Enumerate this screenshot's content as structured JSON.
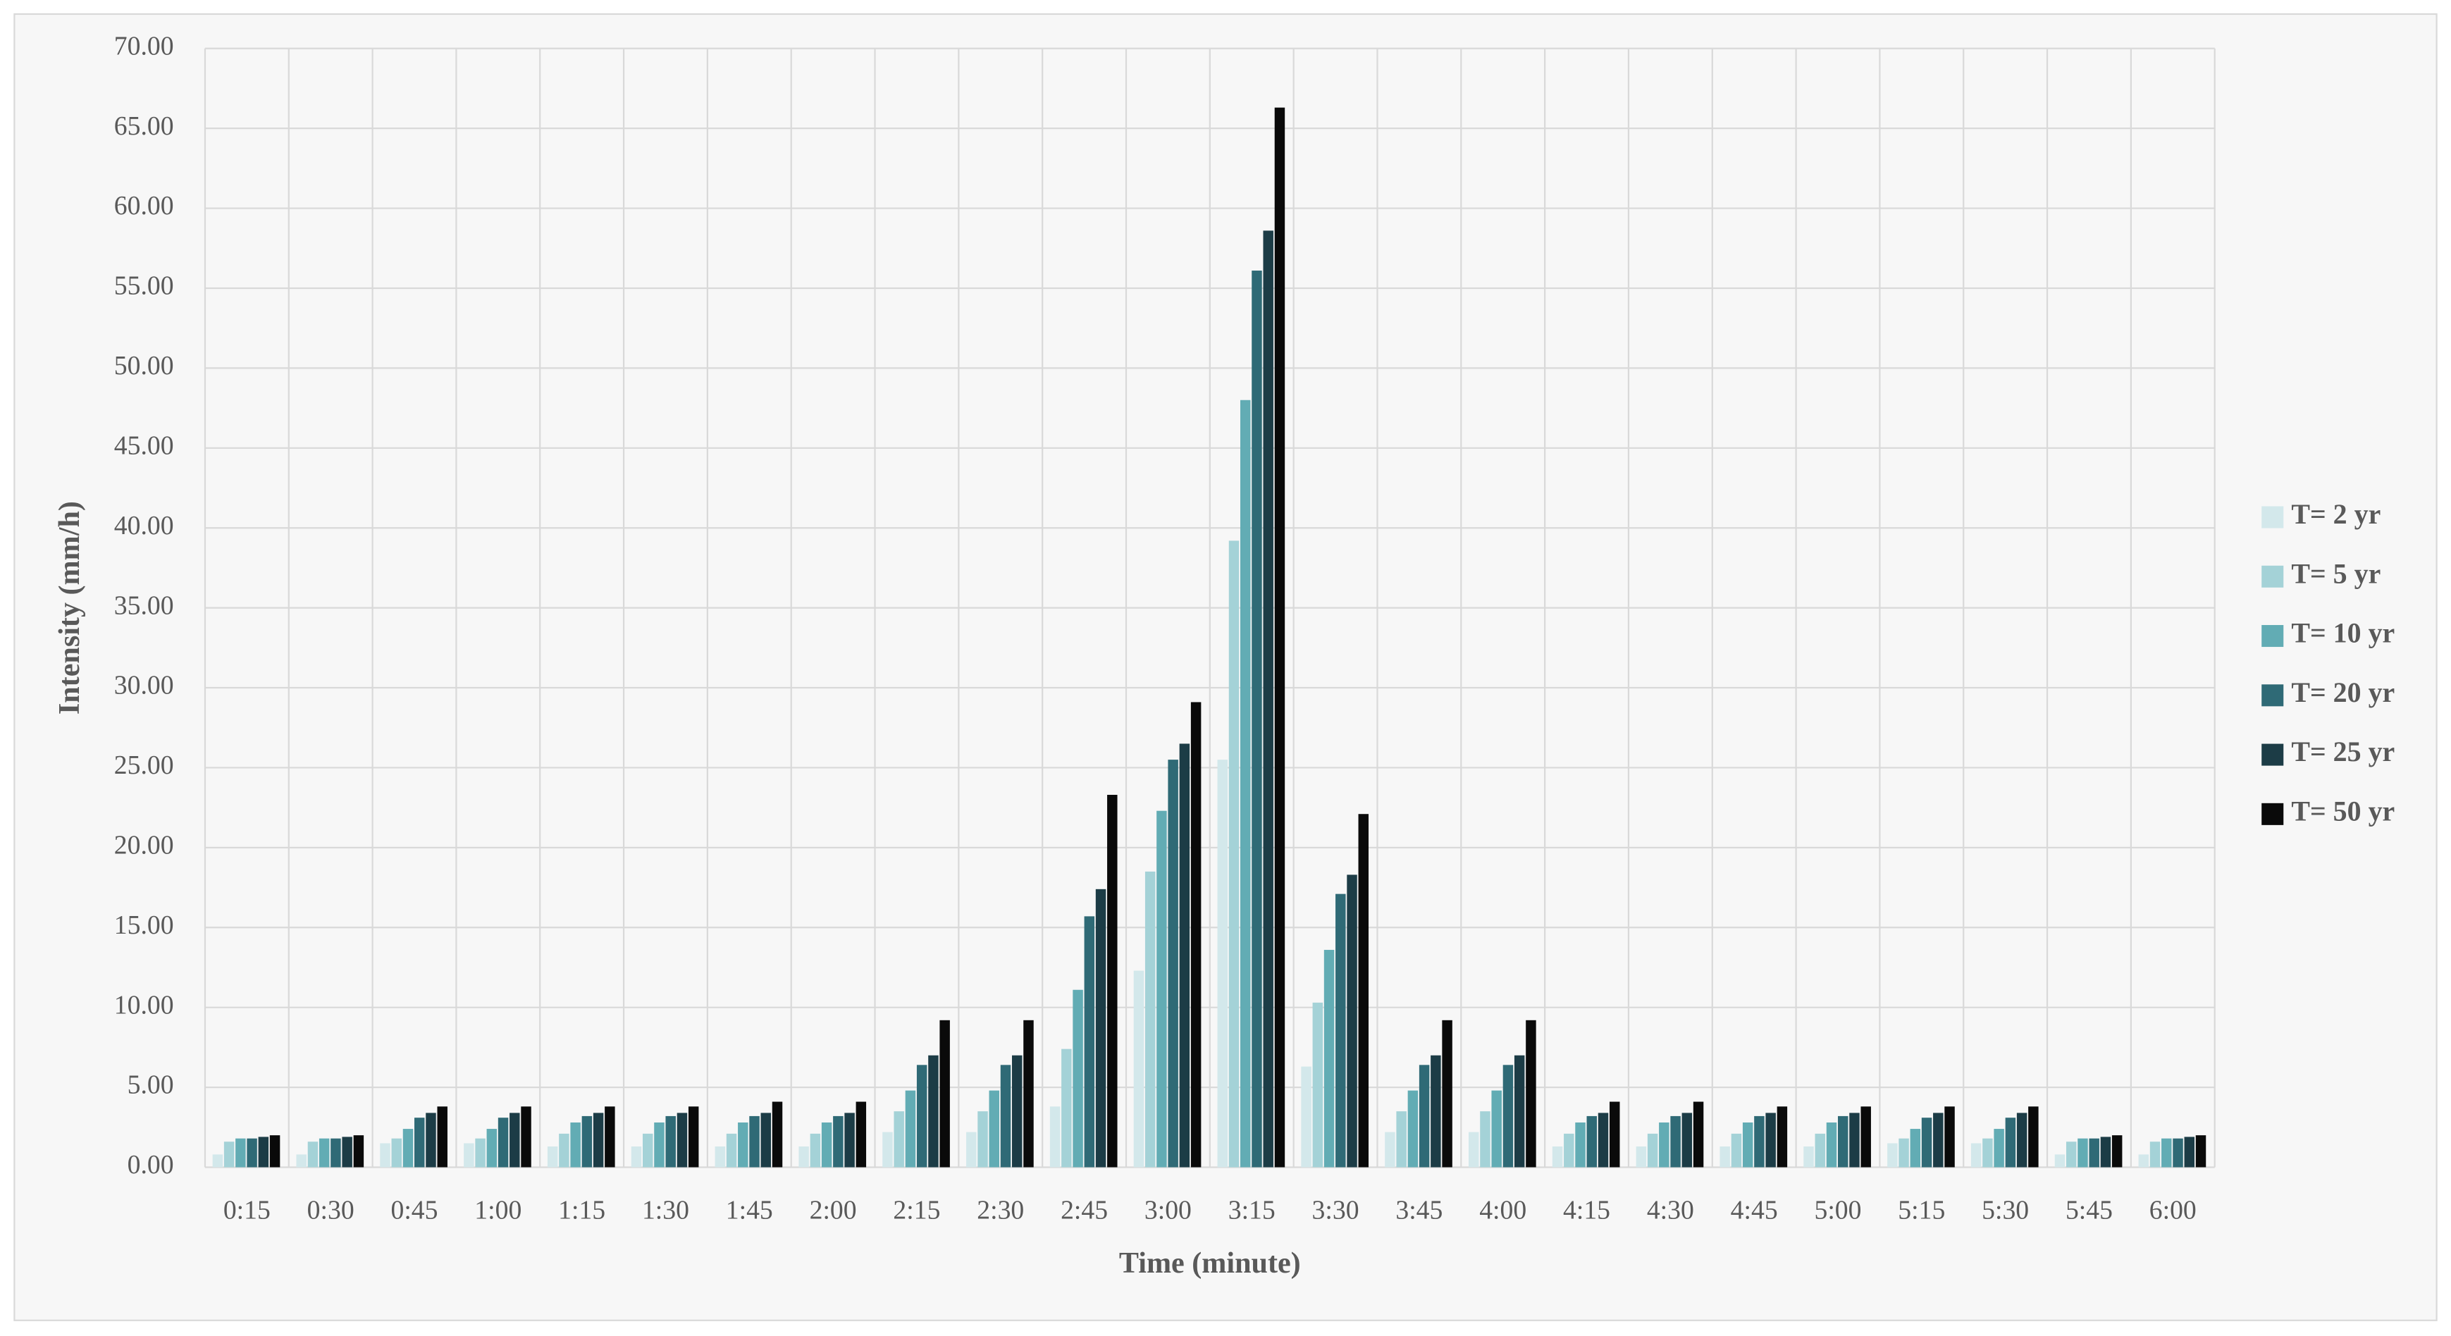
{
  "chart_data": {
    "type": "bar",
    "x_label": "Time (minute)",
    "y_label": "Intensity (mm/h)",
    "categories": [
      "0:15",
      "0:30",
      "0:45",
      "1:00",
      "1:15",
      "1:30",
      "1:45",
      "2:00",
      "2:15",
      "2:30",
      "2:45",
      "3:00",
      "3:15",
      "3:30",
      "3:45",
      "4:00",
      "4:15",
      "4:30",
      "4:45",
      "5:00",
      "5:15",
      "5:30",
      "5:45",
      "6:00"
    ],
    "series": [
      {
        "name": "T= 2 yr",
        "color": "#d3e8eb",
        "values": [
          0.8,
          0.8,
          1.5,
          1.5,
          1.3,
          1.3,
          1.3,
          1.3,
          2.2,
          2.2,
          3.8,
          12.3,
          25.5,
          6.3,
          2.2,
          2.2,
          1.3,
          1.3,
          1.3,
          1.3,
          1.5,
          1.5,
          0.8,
          0.8
        ]
      },
      {
        "name": "T= 5 yr",
        "color": "#a4d2d7",
        "values": [
          1.6,
          1.6,
          1.8,
          1.8,
          2.1,
          2.1,
          2.1,
          2.1,
          3.5,
          3.5,
          7.4,
          18.5,
          39.2,
          10.3,
          3.5,
          3.5,
          2.1,
          2.1,
          2.1,
          2.1,
          1.8,
          1.8,
          1.6,
          1.6
        ]
      },
      {
        "name": "T= 10 yr",
        "color": "#62acb4",
        "values": [
          1.8,
          1.8,
          2.4,
          2.4,
          2.8,
          2.8,
          2.8,
          2.8,
          4.8,
          4.8,
          11.1,
          22.3,
          48.0,
          13.6,
          4.8,
          4.8,
          2.8,
          2.8,
          2.8,
          2.8,
          2.4,
          2.4,
          1.8,
          1.8
        ]
      },
      {
        "name": "T= 20 yr",
        "color": "#2f6a76",
        "values": [
          1.8,
          1.8,
          3.1,
          3.1,
          3.2,
          3.2,
          3.2,
          3.2,
          6.4,
          6.4,
          15.7,
          25.5,
          56.1,
          17.1,
          6.4,
          6.4,
          3.2,
          3.2,
          3.2,
          3.2,
          3.1,
          3.1,
          1.8,
          1.8
        ]
      },
      {
        "name": "T= 25 yr",
        "color": "#1c3c46",
        "values": [
          1.9,
          1.9,
          3.4,
          3.4,
          3.4,
          3.4,
          3.4,
          3.4,
          7.0,
          7.0,
          17.4,
          26.5,
          58.6,
          18.3,
          7.0,
          7.0,
          3.4,
          3.4,
          3.4,
          3.4,
          3.4,
          3.4,
          1.9,
          1.9
        ]
      },
      {
        "name": "T= 50 yr",
        "color": "#0a0a0a",
        "values": [
          2.0,
          2.0,
          3.8,
          3.8,
          3.8,
          3.8,
          4.1,
          4.1,
          9.2,
          9.2,
          23.3,
          29.1,
          66.3,
          22.1,
          9.2,
          9.2,
          4.1,
          4.1,
          3.8,
          3.8,
          3.8,
          3.8,
          2.0,
          2.0
        ]
      }
    ],
    "ylim": [
      0,
      70
    ],
    "yticks": [
      {
        "value": 0,
        "label": "0.00"
      },
      {
        "value": 5,
        "label": "5.00"
      },
      {
        "value": 10,
        "label": "10.00"
      },
      {
        "value": 15,
        "label": "15.00"
      },
      {
        "value": 20,
        "label": "20.00"
      },
      {
        "value": 25,
        "label": "25.00"
      },
      {
        "value": 30,
        "label": "30.00"
      },
      {
        "value": 35,
        "label": "35.00"
      },
      {
        "value": 40,
        "label": "40.00"
      },
      {
        "value": 45,
        "label": "45.00"
      },
      {
        "value": 50,
        "label": "50.00"
      },
      {
        "value": 55,
        "label": "55.00"
      },
      {
        "value": 60,
        "label": "60.00"
      },
      {
        "value": 65,
        "label": "65.00"
      },
      {
        "value": 70,
        "label": "70.00"
      }
    ],
    "grid": true,
    "legend": "right"
  }
}
